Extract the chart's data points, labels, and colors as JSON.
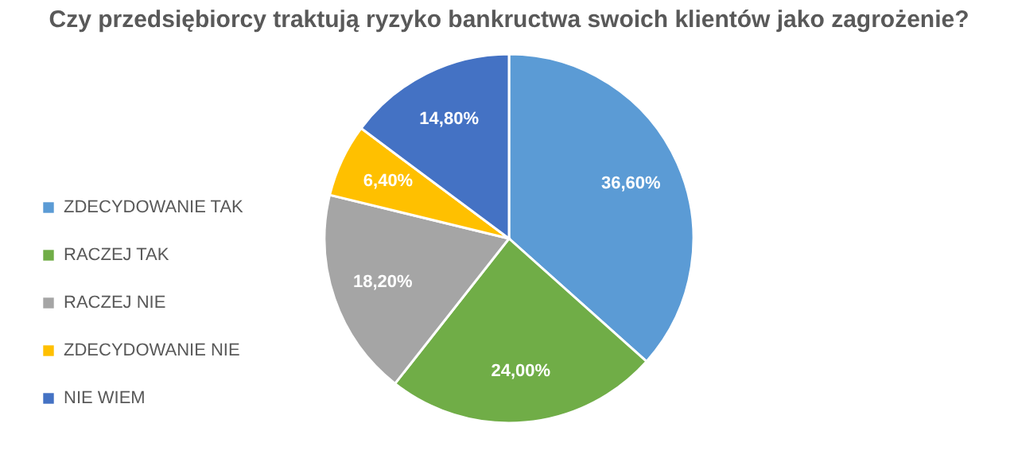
{
  "chart_data": {
    "type": "pie",
    "title": "Czy przedsiębiorcy traktują ryzyko bankructwa swoich klientów jako zagrożenie?",
    "categories": [
      "ZDECYDOWANIE TAK",
      "RACZEJ TAK",
      "RACZEJ NIE",
      "ZDECYDOWANIE NIE",
      "NIE WIEM"
    ],
    "values": [
      36.6,
      24,
      18.2,
      6.4,
      14.8
    ],
    "colors": [
      "#5b9bd5",
      "#70ad47",
      "#a5a5a5",
      "#ffc000",
      "#4472c4"
    ],
    "value_labels": [
      "36,60%",
      "24,00%",
      "18,20%",
      "6,40%",
      "14,80%"
    ],
    "legend": "left",
    "marker": "square"
  }
}
